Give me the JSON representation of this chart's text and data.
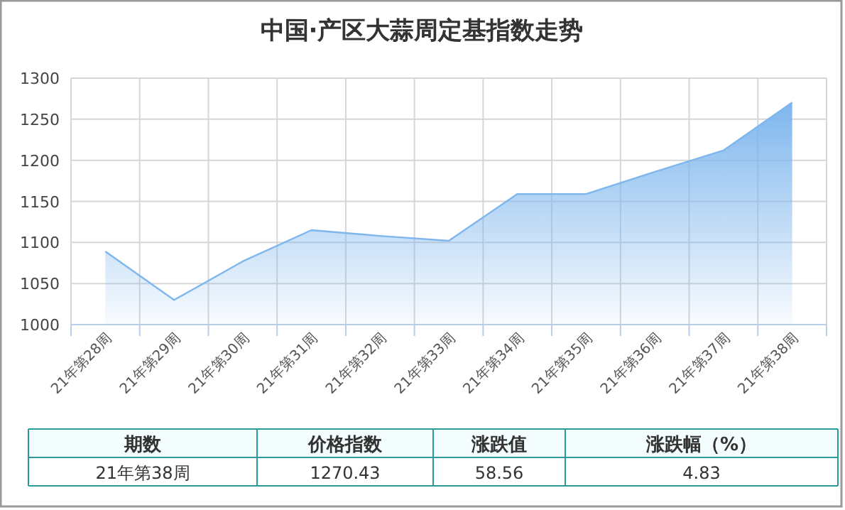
{
  "chart_data": {
    "type": "area",
    "title": "中国·产区大蒜周定基指数走势",
    "categories": [
      "21年第28周",
      "21年第29周",
      "21年第30周",
      "21年第31周",
      "21年第32周",
      "21年第33周",
      "21年第34周",
      "21年第35周",
      "21年第36周",
      "21年第37周",
      "21年第38周"
    ],
    "series": [
      {
        "color": "#7eb6ee",
        "values": [
          1089,
          1030,
          1077,
          1115,
          1108,
          1102,
          1159,
          1159,
          1186,
          1212,
          1270.43
        ]
      }
    ],
    "ylim": [
      1000,
      1300
    ],
    "yticks": [
      1000,
      1050,
      1100,
      1150,
      1200,
      1250,
      1300
    ],
    "grid": true,
    "annotations": [
      "期数",
      "价格指数",
      "涨跌值",
      "涨跌幅（%）",
      "21年第38周",
      "1270.43",
      "58.56",
      "4.83"
    ]
  }
}
